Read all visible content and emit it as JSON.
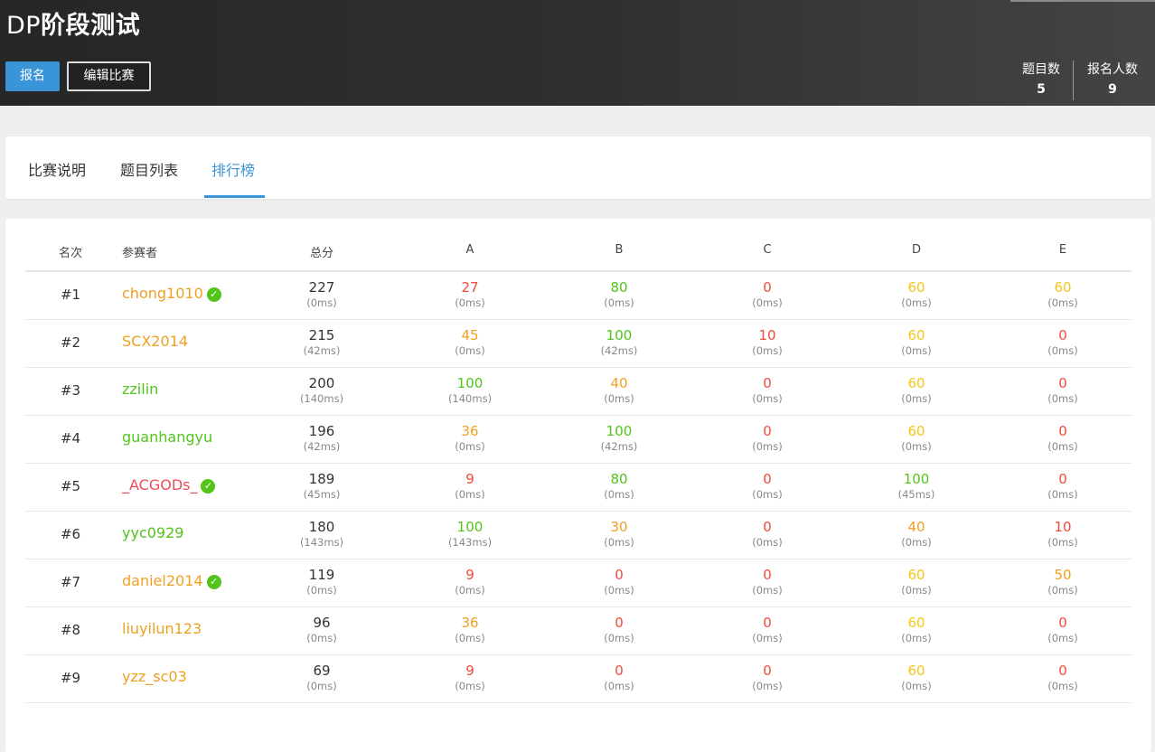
{
  "header": {
    "title_latin": "DP",
    "title_cjk": "阶段测试",
    "signup_label": "报名",
    "edit_label": "编辑比赛",
    "stats": {
      "problems_label": "题目数",
      "problems_value": "5",
      "signups_label": "报名人数",
      "signups_value": "9"
    }
  },
  "tabs": {
    "desc": "比赛说明",
    "list": "题目列表",
    "rank": "排行榜",
    "active": "rank"
  },
  "colors": {
    "accent": "#3a95d8",
    "full": "#52c41a",
    "high": "#e6a700",
    "mid": "#f0a020",
    "low": "#f04a3a",
    "zero": "#f04a3a",
    "verified": "#52c41a"
  },
  "table": {
    "headers": {
      "rank": "名次",
      "user": "参赛者",
      "total": "总分",
      "A": "A",
      "B": "B",
      "C": "C",
      "D": "D",
      "E": "E"
    },
    "rows": [
      {
        "rank": "#1",
        "user": "chong1010",
        "user_color": "#f0a020",
        "verified": true,
        "total": "227",
        "total_time": "(0ms)",
        "problems": [
          {
            "score": "27",
            "time": "(0ms)",
            "color": "#f04a3a"
          },
          {
            "score": "80",
            "time": "(0ms)",
            "color": "#52c41a"
          },
          {
            "score": "0",
            "time": "(0ms)",
            "color": "#f04a3a"
          },
          {
            "score": "60",
            "time": "(0ms)",
            "color": "#f5c518"
          },
          {
            "score": "60",
            "time": "(0ms)",
            "color": "#f5c518"
          }
        ]
      },
      {
        "rank": "#2",
        "user": "SCX2014",
        "user_color": "#f0a020",
        "verified": false,
        "total": "215",
        "total_time": "(42ms)",
        "problems": [
          {
            "score": "45",
            "time": "(0ms)",
            "color": "#f0a020"
          },
          {
            "score": "100",
            "time": "(42ms)",
            "color": "#52c41a"
          },
          {
            "score": "10",
            "time": "(0ms)",
            "color": "#f04a3a"
          },
          {
            "score": "60",
            "time": "(0ms)",
            "color": "#f5c518"
          },
          {
            "score": "0",
            "time": "(0ms)",
            "color": "#f04a3a"
          }
        ]
      },
      {
        "rank": "#3",
        "user": "zzilin",
        "user_color": "#52c41a",
        "verified": false,
        "total": "200",
        "total_time": "(140ms)",
        "problems": [
          {
            "score": "100",
            "time": "(140ms)",
            "color": "#52c41a"
          },
          {
            "score": "40",
            "time": "(0ms)",
            "color": "#f0a020"
          },
          {
            "score": "0",
            "time": "(0ms)",
            "color": "#f04a3a"
          },
          {
            "score": "60",
            "time": "(0ms)",
            "color": "#f5c518"
          },
          {
            "score": "0",
            "time": "(0ms)",
            "color": "#f04a3a"
          }
        ]
      },
      {
        "rank": "#4",
        "user": "guanhangyu",
        "user_color": "#52c41a",
        "verified": false,
        "total": "196",
        "total_time": "(42ms)",
        "problems": [
          {
            "score": "36",
            "time": "(0ms)",
            "color": "#f0a020"
          },
          {
            "score": "100",
            "time": "(42ms)",
            "color": "#52c41a"
          },
          {
            "score": "0",
            "time": "(0ms)",
            "color": "#f04a3a"
          },
          {
            "score": "60",
            "time": "(0ms)",
            "color": "#f5c518"
          },
          {
            "score": "0",
            "time": "(0ms)",
            "color": "#f04a3a"
          }
        ]
      },
      {
        "rank": "#5",
        "user": "_ACGODs_",
        "user_color": "#f04a5a",
        "verified": true,
        "total": "189",
        "total_time": "(45ms)",
        "problems": [
          {
            "score": "9",
            "time": "(0ms)",
            "color": "#f04a3a"
          },
          {
            "score": "80",
            "time": "(0ms)",
            "color": "#52c41a"
          },
          {
            "score": "0",
            "time": "(0ms)",
            "color": "#f04a3a"
          },
          {
            "score": "100",
            "time": "(45ms)",
            "color": "#52c41a"
          },
          {
            "score": "0",
            "time": "(0ms)",
            "color": "#f04a3a"
          }
        ]
      },
      {
        "rank": "#6",
        "user": "yyc0929",
        "user_color": "#52c41a",
        "verified": false,
        "total": "180",
        "total_time": "(143ms)",
        "problems": [
          {
            "score": "100",
            "time": "(143ms)",
            "color": "#52c41a"
          },
          {
            "score": "30",
            "time": "(0ms)",
            "color": "#f0a020"
          },
          {
            "score": "0",
            "time": "(0ms)",
            "color": "#f04a3a"
          },
          {
            "score": "40",
            "time": "(0ms)",
            "color": "#f0a020"
          },
          {
            "score": "10",
            "time": "(0ms)",
            "color": "#f04a3a"
          }
        ]
      },
      {
        "rank": "#7",
        "user": "daniel2014",
        "user_color": "#f0a020",
        "verified": true,
        "total": "119",
        "total_time": "(0ms)",
        "problems": [
          {
            "score": "9",
            "time": "(0ms)",
            "color": "#f04a3a"
          },
          {
            "score": "0",
            "time": "(0ms)",
            "color": "#f04a3a"
          },
          {
            "score": "0",
            "time": "(0ms)",
            "color": "#f04a3a"
          },
          {
            "score": "60",
            "time": "(0ms)",
            "color": "#f5c518"
          },
          {
            "score": "50",
            "time": "(0ms)",
            "color": "#f0a020"
          }
        ]
      },
      {
        "rank": "#8",
        "user": "liuyilun123",
        "user_color": "#f0a020",
        "verified": false,
        "total": "96",
        "total_time": "(0ms)",
        "problems": [
          {
            "score": "36",
            "time": "(0ms)",
            "color": "#f0a020"
          },
          {
            "score": "0",
            "time": "(0ms)",
            "color": "#f04a3a"
          },
          {
            "score": "0",
            "time": "(0ms)",
            "color": "#f04a3a"
          },
          {
            "score": "60",
            "time": "(0ms)",
            "color": "#f5c518"
          },
          {
            "score": "0",
            "time": "(0ms)",
            "color": "#f04a3a"
          }
        ]
      },
      {
        "rank": "#9",
        "user": "yzz_sc03",
        "user_color": "#f0a020",
        "verified": false,
        "total": "69",
        "total_time": "(0ms)",
        "problems": [
          {
            "score": "9",
            "time": "(0ms)",
            "color": "#f04a3a"
          },
          {
            "score": "0",
            "time": "(0ms)",
            "color": "#f04a3a"
          },
          {
            "score": "0",
            "time": "(0ms)",
            "color": "#f04a3a"
          },
          {
            "score": "60",
            "time": "(0ms)",
            "color": "#f5c518"
          },
          {
            "score": "0",
            "time": "(0ms)",
            "color": "#f04a3a"
          }
        ]
      }
    ]
  }
}
